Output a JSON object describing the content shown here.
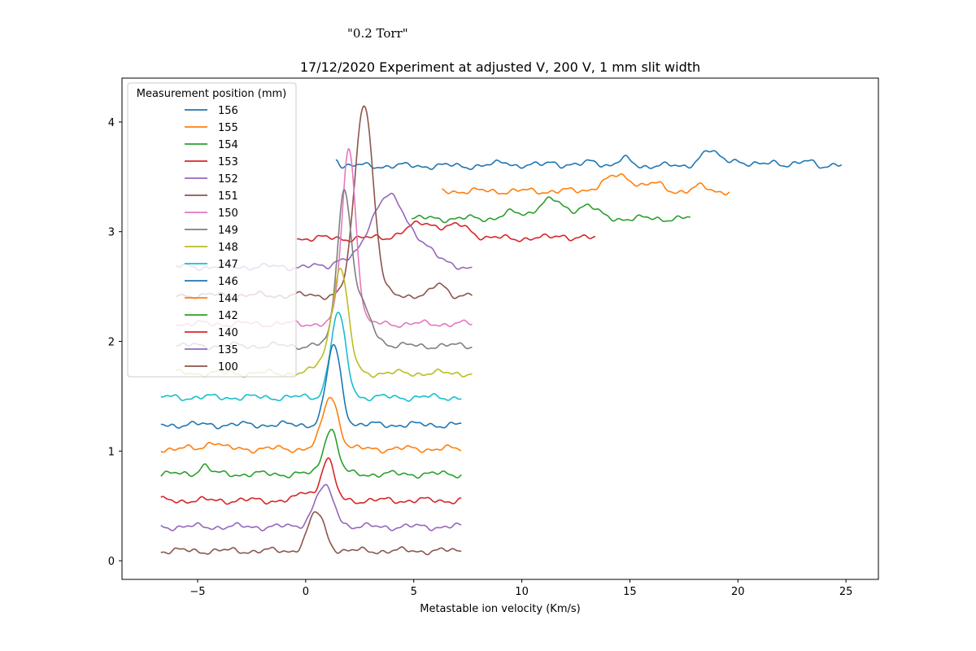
{
  "annotation": "\"0.2 Torr\"",
  "chart_data": {
    "type": "line",
    "title": "17/12/2020 Experiment at adjusted V, 200 V, 1 mm slit width",
    "xlabel": "Metastable ion velocity (Km/s)",
    "ylabel": "",
    "xlim": [
      -8.5,
      26.5
    ],
    "ylim": [
      -0.17,
      4.4
    ],
    "xticks": [
      -5,
      0,
      5,
      10,
      15,
      20,
      25
    ],
    "xtick_labels": [
      "−5",
      "0",
      "5",
      "10",
      "15",
      "20",
      "25"
    ],
    "yticks": [
      0,
      1,
      2,
      3,
      4
    ],
    "ytick_labels": [
      "0",
      "1",
      "2",
      "3",
      "4"
    ],
    "grid": false,
    "legend": {
      "title": "Measurement position (mm)",
      "placement": "top-left"
    },
    "series": [
      {
        "name": "156",
        "color": "#1f77b4",
        "x_range": [
          1.4,
          24.8
        ],
        "baseline": 3.6,
        "peaks": [
          [
            1.4,
            0.08,
            0.12
          ],
          [
            9.2,
            0.04,
            0.3
          ],
          [
            11.4,
            0.04,
            0.3
          ],
          [
            13.3,
            0.05,
            0.3
          ],
          [
            14.8,
            0.06,
            0.3
          ],
          [
            18.7,
            0.13,
            0.45
          ],
          [
            19.8,
            0.06,
            0.3
          ],
          [
            21.6,
            0.05,
            0.3
          ],
          [
            23.3,
            0.05,
            0.3
          ]
        ]
      },
      {
        "name": "155",
        "color": "#ff7f0e",
        "x_range": [
          6.3,
          19.6
        ],
        "baseline": 3.37,
        "peaks": [
          [
            14.5,
            0.14,
            0.7
          ],
          [
            16.2,
            0.06,
            0.35
          ],
          [
            18.3,
            0.04,
            0.3
          ]
        ]
      },
      {
        "name": "154",
        "color": "#2ca02c",
        "x_range": [
          4.9,
          17.8
        ],
        "baseline": 3.12,
        "peaks": [
          [
            11.3,
            0.17,
            0.6
          ],
          [
            13.0,
            0.12,
            0.45
          ],
          [
            9.5,
            0.05,
            0.4
          ]
        ]
      },
      {
        "name": "153",
        "color": "#d62728",
        "x_range": [
          -0.4,
          13.4
        ],
        "baseline": 2.94,
        "peaks": [
          [
            5.5,
            0.14,
            0.8
          ],
          [
            7.2,
            0.1,
            0.5
          ],
          [
            11.8,
            0.03,
            0.3
          ]
        ]
      },
      {
        "name": "152",
        "color": "#9467bd",
        "x_range": [
          -6.0,
          7.7
        ],
        "baseline": 2.68,
        "peaks": [
          [
            3.8,
            0.66,
            0.8
          ],
          [
            5.5,
            0.16,
            0.55
          ],
          [
            1.6,
            0.06,
            0.3
          ]
        ]
      },
      {
        "name": "151",
        "color": "#8c564b",
        "x_range": [
          -6.0,
          7.7
        ],
        "baseline": 2.42,
        "peaks": [
          [
            2.7,
            1.76,
            0.42
          ],
          [
            6.2,
            0.1,
            0.3
          ]
        ]
      },
      {
        "name": "150",
        "color": "#e377c2",
        "x_range": [
          -6.0,
          7.7
        ],
        "baseline": 2.16,
        "peaks": [
          [
            2.0,
            1.6,
            0.32
          ]
        ]
      },
      {
        "name": "149",
        "color": "#7f7f7f",
        "x_range": [
          -6.0,
          7.7
        ],
        "baseline": 1.96,
        "peaks": [
          [
            1.75,
            1.13,
            0.3
          ],
          [
            2.3,
            0.45,
            0.6
          ]
        ]
      },
      {
        "name": "148",
        "color": "#bcbd22",
        "x_range": [
          -6.0,
          7.7
        ],
        "baseline": 1.71,
        "peaks": [
          [
            1.6,
            0.95,
            0.36
          ],
          [
            0.8,
            0.1,
            0.35
          ]
        ]
      },
      {
        "name": "147",
        "color": "#17becf",
        "x_range": [
          -6.7,
          7.2
        ],
        "baseline": 1.49,
        "peaks": [
          [
            1.5,
            0.76,
            0.35
          ]
        ]
      },
      {
        "name": "146",
        "color": "#1f77b4",
        "x_range": [
          -6.7,
          7.2
        ],
        "baseline": 1.24,
        "peaks": [
          [
            1.3,
            0.72,
            0.33
          ]
        ]
      },
      {
        "name": "144",
        "color": "#ff7f0e",
        "x_range": [
          -6.7,
          7.2
        ],
        "baseline": 1.02,
        "peaks": [
          [
            1.15,
            0.48,
            0.36
          ],
          [
            -4.3,
            0.07,
            0.3
          ]
        ]
      },
      {
        "name": "142",
        "color": "#2ca02c",
        "x_range": [
          -6.7,
          7.2
        ],
        "baseline": 0.79,
        "peaks": [
          [
            1.15,
            0.42,
            0.32
          ],
          [
            -4.7,
            0.08,
            0.25
          ]
        ]
      },
      {
        "name": "140",
        "color": "#d62728",
        "x_range": [
          -6.7,
          7.2
        ],
        "baseline": 0.55,
        "peaks": [
          [
            1.0,
            0.38,
            0.3
          ],
          [
            0.0,
            0.08,
            0.3
          ]
        ]
      },
      {
        "name": "135",
        "color": "#9467bd",
        "x_range": [
          -6.7,
          7.2
        ],
        "baseline": 0.31,
        "peaks": [
          [
            0.85,
            0.36,
            0.45
          ]
        ]
      },
      {
        "name": "100",
        "color": "#8c564b",
        "x_range": [
          -6.7,
          7.2
        ],
        "baseline": 0.09,
        "peaks": [
          [
            0.5,
            0.35,
            0.38
          ]
        ]
      }
    ]
  }
}
